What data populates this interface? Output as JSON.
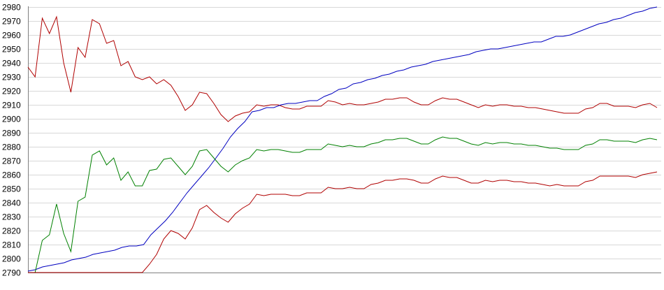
{
  "chart_data": {
    "type": "line",
    "title": "",
    "xlabel": "",
    "ylabel": "",
    "ylim": [
      2790,
      2980
    ],
    "yticks": [
      2790,
      2800,
      2810,
      2820,
      2830,
      2840,
      2850,
      2860,
      2870,
      2880,
      2890,
      2900,
      2910,
      2920,
      2930,
      2940,
      2950,
      2960,
      2970,
      2980
    ],
    "ytick_labels": [
      "2790",
      "2800",
      "2810",
      "2820",
      "2830",
      "2840",
      "2850",
      "2860",
      "2870",
      "2880",
      "2890",
      "2900",
      "2910",
      "2920",
      "2930",
      "2940",
      "2950",
      "2960",
      "2970",
      "2980"
    ],
    "grid": true,
    "series": [
      {
        "color": "#b00000",
        "values": [
          2937,
          2930,
          2972,
          2961,
          2973,
          2940,
          2919,
          2951,
          2944,
          2971,
          2968,
          2954,
          2956,
          2938,
          2941,
          2930,
          2928,
          2930,
          2925,
          2928,
          2924,
          2916,
          2906,
          2910,
          2919,
          2918,
          2911,
          2903,
          2898,
          2902,
          2904,
          2905,
          2910,
          2909,
          2910,
          2910,
          2908,
          2907,
          2907,
          2909,
          2909,
          2909,
          2913,
          2912,
          2910,
          2911,
          2910,
          2910,
          2911,
          2912,
          2914,
          2914,
          2915,
          2915,
          2912,
          2910,
          2910,
          2913,
          2915,
          2914,
          2914,
          2912,
          2910,
          2908,
          2910,
          2909,
          2910,
          2910,
          2909,
          2909,
          2908,
          2908,
          2907,
          2906,
          2905,
          2904,
          2904,
          2904,
          2907,
          2908,
          2911,
          2911,
          2909,
          2909,
          2909,
          2908,
          2910,
          2911,
          2908
        ]
      },
      {
        "color": "#0000c0",
        "values": [
          2791,
          2792,
          2794,
          2795,
          2796,
          2797,
          2799,
          2800,
          2801,
          2803,
          2804,
          2805,
          2806,
          2808,
          2809,
          2809,
          2810,
          2817,
          2822,
          2827,
          2833,
          2840,
          2847,
          2853,
          2859,
          2865,
          2872,
          2879,
          2887,
          2893,
          2898,
          2905,
          2906,
          2908,
          2908,
          2910,
          2911,
          2911,
          2912,
          2913,
          2913,
          2916,
          2918,
          2921,
          2922,
          2925,
          2926,
          2928,
          2929,
          2931,
          2932,
          2934,
          2935,
          2937,
          2938,
          2939,
          2941,
          2942,
          2943,
          2944,
          2945,
          2946,
          2948,
          2949,
          2950,
          2950,
          2951,
          2952,
          2953,
          2954,
          2955,
          2955,
          2957,
          2959,
          2959,
          2960,
          2962,
          2964,
          2966,
          2968,
          2969,
          2971,
          2972,
          2974,
          2976,
          2977,
          2979,
          2980
        ]
      },
      {
        "color": "#008000",
        "values": [
          2790,
          2790,
          2813,
          2817,
          2839,
          2818,
          2805,
          2841,
          2844,
          2874,
          2877,
          2867,
          2872,
          2856,
          2862,
          2852,
          2852,
          2863,
          2864,
          2871,
          2872,
          2866,
          2860,
          2866,
          2877,
          2878,
          2872,
          2866,
          2862,
          2867,
          2870,
          2872,
          2878,
          2877,
          2878,
          2878,
          2877,
          2876,
          2876,
          2878,
          2878,
          2878,
          2882,
          2881,
          2880,
          2881,
          2880,
          2880,
          2882,
          2883,
          2885,
          2885,
          2886,
          2886,
          2884,
          2882,
          2882,
          2885,
          2887,
          2886,
          2886,
          2884,
          2882,
          2881,
          2883,
          2882,
          2883,
          2883,
          2882,
          2882,
          2881,
          2881,
          2880,
          2879,
          2879,
          2878,
          2878,
          2878,
          2881,
          2882,
          2885,
          2885,
          2884,
          2884,
          2884,
          2883,
          2885,
          2886,
          2885
        ]
      },
      {
        "color": "#b00000",
        "values": [
          2790,
          2790,
          2790,
          2790,
          2790,
          2790,
          2790,
          2790,
          2790,
          2790,
          2790,
          2790,
          2790,
          2790,
          2790,
          2790,
          2790,
          2796,
          2803,
          2814,
          2820,
          2818,
          2814,
          2822,
          2835,
          2838,
          2833,
          2829,
          2826,
          2832,
          2836,
          2839,
          2846,
          2845,
          2846,
          2846,
          2846,
          2845,
          2845,
          2847,
          2847,
          2847,
          2851,
          2850,
          2850,
          2851,
          2850,
          2850,
          2853,
          2854,
          2856,
          2856,
          2857,
          2857,
          2856,
          2854,
          2854,
          2857,
          2859,
          2858,
          2858,
          2856,
          2854,
          2854,
          2856,
          2855,
          2856,
          2856,
          2855,
          2855,
          2854,
          2854,
          2853,
          2852,
          2853,
          2852,
          2852,
          2852,
          2855,
          2856,
          2859,
          2859,
          2859,
          2859,
          2859,
          2858,
          2860,
          2861,
          2862
        ]
      }
    ]
  }
}
